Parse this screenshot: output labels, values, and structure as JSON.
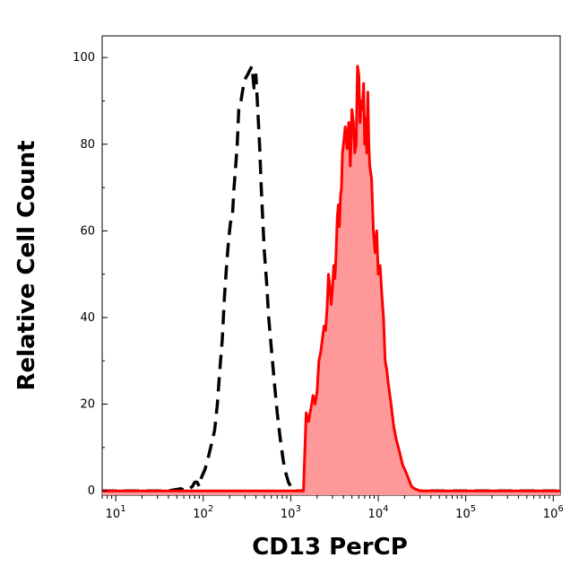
{
  "chart_data": {
    "type": "area",
    "xlabel": "CD13 PerCP",
    "ylabel": "Relative Cell Count",
    "x_scale": "log",
    "xlim": [
      7,
      1200000
    ],
    "ylim": [
      -1,
      105
    ],
    "x_ticks": [
      {
        "value": 10,
        "base": "10",
        "exp": "1"
      },
      {
        "value": 100,
        "base": "10",
        "exp": "2"
      },
      {
        "value": 1000,
        "base": "10",
        "exp": "3"
      },
      {
        "value": 10000,
        "base": "10",
        "exp": "4"
      },
      {
        "value": 100000,
        "base": "10",
        "exp": "5"
      },
      {
        "value": 1000000,
        "base": "10",
        "exp": "6"
      }
    ],
    "y_ticks": [
      "0",
      "20",
      "40",
      "60",
      "80",
      "100"
    ],
    "grid": false,
    "series": [
      {
        "style": "dashed",
        "color": "#000000",
        "fill": "none",
        "x": [
          7,
          40,
          55,
          65,
          75,
          80,
          85,
          90,
          95,
          105,
          115,
          125,
          135,
          145,
          155,
          165,
          175,
          185,
          195,
          205,
          215,
          225,
          235,
          245,
          255,
          270,
          285,
          300,
          320,
          340,
          360,
          380,
          400,
          420,
          440,
          460,
          480,
          500,
          530,
          560,
          600,
          650,
          700,
          760,
          820,
          880,
          940,
          1000,
          1100,
          1300,
          3000,
          20000,
          1200000
        ],
        "y": [
          0,
          0,
          0.5,
          0,
          1,
          2,
          2,
          1,
          3,
          5,
          8,
          11,
          14,
          20,
          28,
          35,
          45,
          52,
          58,
          62,
          63,
          70,
          75,
          80,
          88,
          90,
          93,
          95,
          96,
          97,
          98,
          93,
          96,
          88,
          80,
          70,
          62,
          55,
          48,
          40,
          33,
          25,
          18,
          12,
          7,
          4,
          2,
          1,
          0,
          0,
          0.5,
          0,
          0
        ]
      },
      {
        "style": "solid",
        "color": "#ff0000",
        "fill": "#ff9999",
        "x": [
          7,
          500,
          1400,
          1500,
          1600,
          1700,
          1800,
          1900,
          2000,
          2100,
          2200,
          2300,
          2400,
          2500,
          2600,
          2700,
          2800,
          2900,
          3000,
          3100,
          3200,
          3300,
          3400,
          3500,
          3600,
          3700,
          3800,
          3900,
          4000,
          4200,
          4400,
          4600,
          4800,
          5000,
          5200,
          5400,
          5600,
          5800,
          6000,
          6200,
          6400,
          6600,
          6800,
          7000,
          7200,
          7400,
          7600,
          7800,
          8000,
          8400,
          8800,
          9200,
          9600,
          10000,
          10500,
          11000,
          11500,
          12000,
          12500,
          13000,
          14000,
          15000,
          16000,
          17000,
          18000,
          19000,
          20000,
          21000,
          22000,
          23000,
          24000,
          26000,
          30000,
          1200000
        ],
        "y": [
          0,
          0,
          0,
          18,
          16,
          19,
          22,
          20,
          23,
          30,
          32,
          35,
          38,
          37,
          42,
          50,
          47,
          43,
          47,
          52,
          49,
          55,
          63,
          66,
          61,
          68,
          70,
          78,
          80,
          84,
          79,
          85,
          75,
          88,
          85,
          78,
          80,
          98,
          96,
          85,
          90,
          88,
          94,
          80,
          86,
          78,
          92,
          80,
          75,
          72,
          60,
          55,
          60,
          50,
          52,
          45,
          40,
          30,
          28,
          25,
          20,
          15,
          12,
          10,
          8,
          6,
          5,
          4,
          3,
          2,
          1,
          0.5,
          0,
          0
        ]
      }
    ]
  }
}
